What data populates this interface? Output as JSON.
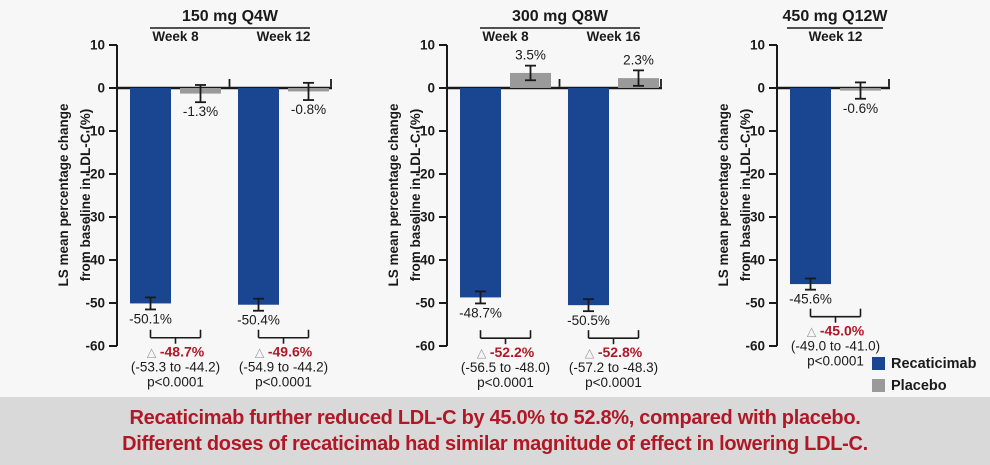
{
  "banner": {
    "line1": "Recaticimab further reduced LDL-C by 45.0% to 52.8%, compared with placebo.",
    "line2": "Different doses of recaticimab had similar magnitude of effect in lowering LDL-C."
  },
  "colors": {
    "recaticimab": "#1a4691",
    "placebo": "#9a9a9a",
    "accent_red": "#b01826",
    "banner_bg": "#d9d9d9",
    "figure_bg": "#f7f7f7",
    "axis": "#1a1a1a"
  },
  "chart_data": {
    "type": "bar",
    "ylabel_lines": [
      "LS mean percentage change",
      "from baseline in LDL-C (%)"
    ],
    "ylim": [
      -60,
      10
    ],
    "yticks": [
      10,
      0,
      -10,
      -20,
      -30,
      -40,
      -50,
      -60
    ],
    "legend": [
      "Recaticimab",
      "Placebo"
    ],
    "series_colors": {
      "Recaticimab": "#1a4691",
      "Placebo": "#9a9a9a"
    },
    "delta_symbol": "△",
    "panels": [
      {
        "title": "150 mg Q4W",
        "groups": [
          {
            "week": "Week 8",
            "bars": [
              {
                "series": "Recaticimab",
                "value": -50.1,
                "label": "-50.1%",
                "error": 1.4
              },
              {
                "series": "Placebo",
                "value": -1.3,
                "label": "-1.3%",
                "error": 2.0
              }
            ],
            "comparison": {
              "delta_label": "-48.7%",
              "ci": "(-53.3 to -44.2)",
              "p": "p<0.0001"
            }
          },
          {
            "week": "Week 12",
            "bars": [
              {
                "series": "Recaticimab",
                "value": -50.4,
                "label": "-50.4%",
                "error": 1.4
              },
              {
                "series": "Placebo",
                "value": -0.8,
                "label": "-0.8%",
                "error": 2.0
              }
            ],
            "comparison": {
              "delta_label": "-49.6%",
              "ci": "(-54.9 to -44.2)",
              "p": "p<0.0001"
            }
          }
        ]
      },
      {
        "title": "300 mg Q8W",
        "groups": [
          {
            "week": "Week 8",
            "bars": [
              {
                "series": "Recaticimab",
                "value": -48.7,
                "label": "-48.7%",
                "error": 1.4
              },
              {
                "series": "Placebo",
                "value": 3.5,
                "label": "3.5%",
                "error": 1.7
              }
            ],
            "comparison": {
              "delta_label": "-52.2%",
              "ci": "(-56.5 to -48.0)",
              "p": "p<0.0001"
            }
          },
          {
            "week": "Week 16",
            "bars": [
              {
                "series": "Recaticimab",
                "value": -50.5,
                "label": "-50.5%",
                "error": 1.4
              },
              {
                "series": "Placebo",
                "value": 2.3,
                "label": "2.3%",
                "error": 1.8
              }
            ],
            "comparison": {
              "delta_label": "-52.8%",
              "ci": "(-57.2 to -48.3)",
              "p": "p<0.0001"
            }
          }
        ]
      },
      {
        "title": "450 mg Q12W",
        "groups": [
          {
            "week": "Week 12",
            "bars": [
              {
                "series": "Recaticimab",
                "value": -45.6,
                "label": "-45.6%",
                "error": 1.3
              },
              {
                "series": "Placebo",
                "value": -0.6,
                "label": "-0.6%",
                "error": 1.9
              }
            ],
            "comparison": {
              "delta_label": "-45.0%",
              "ci": "(-49.0 to -41.0)",
              "p": "p<0.0001"
            }
          }
        ]
      }
    ]
  }
}
